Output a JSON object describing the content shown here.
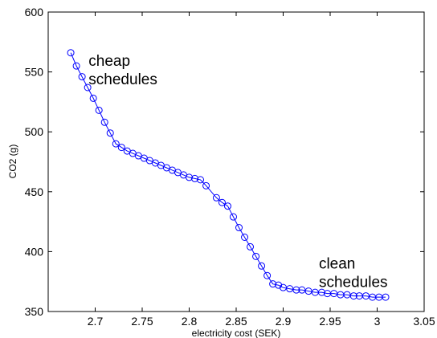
{
  "chart_data": {
    "type": "line",
    "xlabel": "electricity cost (SEK)",
    "ylabel": "CO2 (g)",
    "xlim": [
      2.65,
      3.05
    ],
    "ylim": [
      350,
      600
    ],
    "xticks": [
      "2.7",
      "2.75",
      "2.8",
      "2.85",
      "2.9",
      "2.95",
      "3",
      "3.05"
    ],
    "yticks": [
      "350",
      "400",
      "450",
      "500",
      "550",
      "600"
    ],
    "grid": false,
    "marker": "circle",
    "line_color": "#0000ff",
    "annotations": [
      {
        "lines": [
          "cheap",
          "schedules"
        ],
        "x": 2.693,
        "y": 555
      },
      {
        "lines": [
          "clean",
          "schedules"
        ],
        "x": 2.938,
        "y": 386
      }
    ],
    "series": [
      {
        "x": [
          2.674,
          2.68,
          2.686,
          2.692,
          2.698,
          2.704,
          2.71,
          2.716,
          2.722,
          2.728,
          2.734,
          2.74,
          2.746,
          2.752,
          2.758,
          2.764,
          2.77,
          2.776,
          2.782,
          2.788,
          2.794,
          2.8,
          2.806,
          2.812,
          2.818,
          2.829,
          2.835,
          2.841,
          2.847,
          2.853,
          2.859,
          2.865,
          2.871,
          2.877,
          2.883,
          2.889,
          2.895,
          2.9,
          2.907,
          2.914,
          2.92,
          2.927,
          2.934,
          2.941,
          2.947,
          2.954,
          2.961,
          2.968,
          2.975,
          2.981,
          2.988,
          2.995,
          3.002,
          3.009
        ],
        "y": [
          566,
          555,
          546,
          537,
          528,
          518,
          508,
          499,
          490,
          487,
          484,
          482,
          480,
          478,
          476,
          474,
          472,
          470,
          468,
          466,
          464,
          462,
          461,
          460,
          455,
          445,
          441,
          438,
          429,
          420,
          412,
          404,
          396,
          388,
          380,
          373,
          372,
          370,
          369,
          368,
          368,
          367,
          366,
          366,
          365,
          365,
          364,
          364,
          363,
          363,
          363,
          362,
          362,
          362
        ]
      }
    ]
  }
}
